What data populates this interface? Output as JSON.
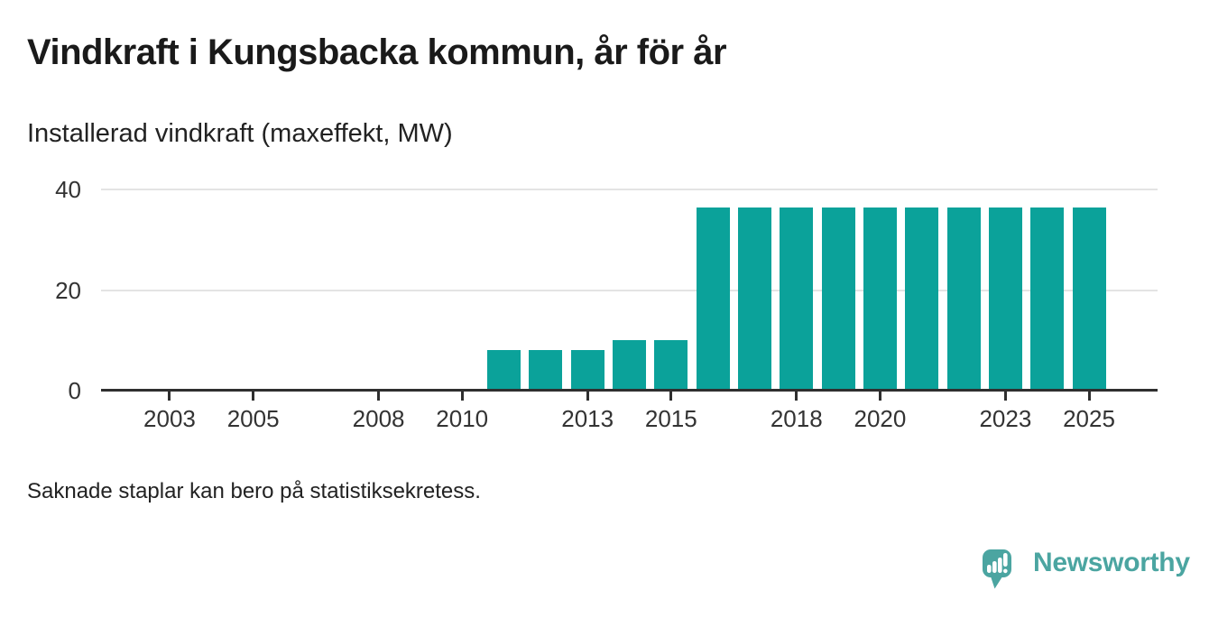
{
  "header": {
    "title": "Vindkraft i Kungsbacka kommun, år för år",
    "subtitle": "Installerad vindkraft (maxeffekt, MW)"
  },
  "chart_data": {
    "type": "bar",
    "title": "Vindkraft i Kungsbacka kommun, år för år",
    "subtitle": "Installerad vindkraft (maxeffekt, MW)",
    "unit": "MW",
    "categories": [
      2002,
      2003,
      2004,
      2005,
      2006,
      2007,
      2008,
      2009,
      2010,
      2011,
      2012,
      2013,
      2014,
      2015,
      2016,
      2017,
      2018,
      2019,
      2020,
      2021,
      2022,
      2023,
      2024,
      2025,
      2026
    ],
    "values": [
      null,
      null,
      null,
      null,
      null,
      null,
      null,
      null,
      null,
      8,
      8,
      8,
      10,
      10,
      36.5,
      36.5,
      36.5,
      36.5,
      36.5,
      36.5,
      36.5,
      36.5,
      36.5,
      36.5,
      null
    ],
    "x_tick_labels": [
      "2003",
      "2005",
      "2008",
      "2010",
      "2013",
      "2015",
      "2018",
      "2020",
      "2023",
      "2025"
    ],
    "y_ticks": [
      0,
      20,
      40
    ],
    "ylim": [
      0,
      40
    ],
    "grid": "horizontal",
    "legend": "none",
    "colors": {
      "bar": "#0ba29a",
      "axis": "#2f2f2f",
      "gridline": "#e4e4e4",
      "tick_label": "#333333"
    }
  },
  "footer": {
    "note": "Saknade staplar kan bero på statistiksekretess.",
    "brand": {
      "name": "Newsworthy",
      "color": "#4ba5a1",
      "icon": "speech-bubble-bar-chart-icon"
    }
  }
}
